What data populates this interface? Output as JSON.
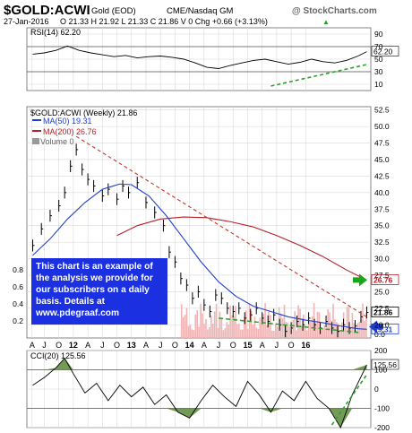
{
  "header": {
    "symbol": "$GOLD:ACWI",
    "name": "Gold (EOD)",
    "exchange": "CME/Nasdaq GM",
    "source": "@ StockCharts.com",
    "date": "27-Jan-2016",
    "ohlc": "O 21.33  H 21.92  L 21.33  C 21.86  V 0  Chg +0.66 (+3.13%)",
    "up_arrow": "▲"
  },
  "note": {
    "lines": [
      "This chart is an example of",
      "the analysis we provide for",
      "our subscribers on a daily",
      "basis.  Details at",
      "www.pdegraaf.com"
    ]
  },
  "colors": {
    "price": "#000000",
    "ma50": "#1f3fd1",
    "ma200": "#b3202a",
    "volume": "#f0b4b4",
    "trendline": "#c0392b",
    "support": "#2e9e2e",
    "indicator_fill": "#5b8a3a",
    "note_bg": "#1b30e0",
    "green_arrow": "#1aa51a",
    "blue_arrow": "#1f3fd1"
  },
  "chart_data": [
    {
      "type": "line",
      "panel": "RSI",
      "title": "RSI(14) 62.20",
      "current_label": "62.20",
      "ylim": [
        0,
        100
      ],
      "y_ticks": [
        "90",
        "70",
        "50",
        "30",
        "10"
      ],
      "reference_lines": [
        70,
        30
      ],
      "x": [
        2010.3,
        2010.5,
        2010.7,
        2010.9,
        2011.1,
        2011.3,
        2011.5,
        2011.7,
        2011.9,
        2012.1,
        2012.3,
        2012.5,
        2012.7,
        2012.9,
        2013.1,
        2013.3,
        2013.5,
        2013.7,
        2013.9,
        2014.1,
        2014.3,
        2014.5,
        2014.7,
        2014.9,
        2015.1,
        2015.3,
        2015.5,
        2015.7,
        2015.9,
        2016.05
      ],
      "values": [
        58,
        60,
        64,
        71,
        64,
        60,
        57,
        54,
        56,
        52,
        54,
        55,
        53,
        50,
        44,
        37,
        35,
        40,
        44,
        48,
        50,
        46,
        42,
        45,
        50,
        46,
        44,
        48,
        55,
        62
      ]
    },
    {
      "type": "line",
      "panel": "price",
      "title": "$GOLD:ACWI (Weekly) 21.86",
      "legend": [
        {
          "label": "MA(50) 19.31"
        },
        {
          "label": "MA(200) 26.76"
        },
        {
          "label": "Volume 0"
        }
      ],
      "ylim": [
        18,
        53
      ],
      "y_ticks": [
        "52.5",
        "50.0",
        "47.5",
        "45.0",
        "42.5",
        "40.0",
        "37.5",
        "35.0",
        "32.5",
        "30.0",
        "27.5",
        "25.0",
        "22.5",
        "20.0"
      ],
      "price_badge": "21.86",
      "ma200_badge": "26.76",
      "ma50_badge": "19.31",
      "volume_axis": {
        "ticks": [
          "0.8",
          "0.6",
          "0.4",
          "0.2"
        ],
        "ylim": [
          0,
          1.0
        ],
        "zero_label": "0.0"
      },
      "series": [
        {
          "name": "$GOLD:ACWI",
          "x": [
            2010.3,
            2010.45,
            2010.6,
            2010.75,
            2010.85,
            2010.95,
            2011.05,
            2011.15,
            2011.25,
            2011.35,
            2011.5,
            2011.6,
            2011.75,
            2011.85,
            2011.95,
            2012.1,
            2012.25,
            2012.4,
            2012.55,
            2012.65,
            2012.75,
            2012.85,
            2012.95,
            2013.05,
            2013.15,
            2013.25,
            2013.35,
            2013.45,
            2013.55,
            2013.65,
            2013.75,
            2013.85,
            2013.95,
            2014.05,
            2014.15,
            2014.25,
            2014.35,
            2014.45,
            2014.55,
            2014.65,
            2014.75,
            2014.85,
            2014.95,
            2015.05,
            2015.15,
            2015.25,
            2015.35,
            2015.45,
            2015.55,
            2015.65,
            2015.75,
            2015.85,
            2015.95,
            2016.05
          ],
          "values": [
            32.0,
            34.5,
            36.5,
            38.0,
            40.0,
            44.0,
            46.5,
            43.5,
            42.0,
            41.0,
            39.5,
            40.5,
            39.0,
            41.0,
            40.0,
            41.5,
            38.5,
            37.0,
            35.0,
            31.0,
            29.5,
            27.0,
            26.0,
            24.0,
            25.0,
            23.0,
            22.0,
            24.5,
            24.0,
            22.5,
            22.0,
            22.5,
            21.0,
            21.5,
            22.5,
            21.0,
            20.5,
            21.5,
            20.0,
            19.0,
            19.5,
            20.5,
            20.0,
            21.0,
            20.0,
            19.5,
            20.5,
            19.5,
            19.0,
            20.0,
            19.5,
            19.8,
            21.2,
            21.86
          ]
        },
        {
          "name": "MA(50)",
          "x": [
            2010.3,
            2010.6,
            2010.9,
            2011.2,
            2011.5,
            2011.8,
            2012.0,
            2012.3,
            2012.6,
            2012.9,
            2013.2,
            2013.5,
            2013.8,
            2014.1,
            2014.4,
            2014.7,
            2015.0,
            2015.3,
            2015.6,
            2015.9,
            2016.05
          ],
          "values": [
            30.5,
            33.0,
            36.0,
            38.5,
            40.5,
            41.3,
            41.2,
            39.5,
            36.5,
            33.0,
            29.5,
            26.5,
            24.3,
            22.8,
            22.0,
            21.2,
            20.7,
            20.3,
            19.8,
            19.4,
            19.31
          ]
        },
        {
          "name": "MA(200)",
          "x": [
            2011.75,
            2012.1,
            2012.5,
            2012.9,
            2013.3,
            2013.7,
            2014.1,
            2014.5,
            2014.9,
            2015.3,
            2015.7,
            2016.05
          ],
          "values": [
            33.5,
            35.0,
            36.0,
            36.3,
            36.2,
            35.6,
            34.8,
            33.5,
            32.0,
            30.3,
            28.3,
            26.76
          ]
        }
      ]
    },
    {
      "type": "line",
      "panel": "CCI",
      "title": "CCI(20) 125.56",
      "current_label": "125.56",
      "ylim": [
        -200,
        200
      ],
      "y_ticks": [
        "200",
        "100",
        "0",
        "-100",
        "-200"
      ],
      "reference_lines": [
        100,
        -100
      ],
      "x": [
        2010.3,
        2010.5,
        2010.7,
        2010.85,
        2011.0,
        2011.2,
        2011.4,
        2011.6,
        2011.8,
        2012.0,
        2012.2,
        2012.4,
        2012.6,
        2012.8,
        2013.0,
        2013.2,
        2013.4,
        2013.6,
        2013.8,
        2014.0,
        2014.2,
        2014.4,
        2014.6,
        2014.8,
        2015.0,
        2015.2,
        2015.4,
        2015.6,
        2015.8,
        2016.05
      ],
      "values": [
        20,
        60,
        110,
        160,
        80,
        -20,
        30,
        -60,
        20,
        -40,
        10,
        -80,
        -30,
        -120,
        -150,
        -60,
        20,
        -40,
        -90,
        40,
        -30,
        -120,
        -10,
        -60,
        40,
        -50,
        -100,
        -200,
        -30,
        125.56
      ]
    }
  ],
  "x_axis": {
    "ticks": [
      {
        "label": "A",
        "year": 2010.29
      },
      {
        "label": "J",
        "year": 2010.5
      },
      {
        "label": "O",
        "year": 2010.75
      },
      {
        "label": "12",
        "year": 2011.0
      },
      {
        "label": "A",
        "year": 2011.25
      },
      {
        "label": "J",
        "year": 2011.5
      },
      {
        "label": "O",
        "year": 2011.75
      },
      {
        "label": "13",
        "year": 2012.0
      },
      {
        "label": "A",
        "year": 2012.25
      },
      {
        "label": "J",
        "year": 2012.5
      },
      {
        "label": "O",
        "year": 2012.75
      },
      {
        "label": "14",
        "year": 2013.0
      },
      {
        "label": "A",
        "year": 2013.25
      },
      {
        "label": "J",
        "year": 2013.5
      },
      {
        "label": "O",
        "year": 2013.75
      },
      {
        "label": "15",
        "year": 2014.0
      },
      {
        "label": "A",
        "year": 2014.25
      },
      {
        "label": "J",
        "year": 2014.5
      },
      {
        "label": "O",
        "year": 2014.75
      },
      {
        "label": "16",
        "year": 2015.0
      }
    ]
  }
}
